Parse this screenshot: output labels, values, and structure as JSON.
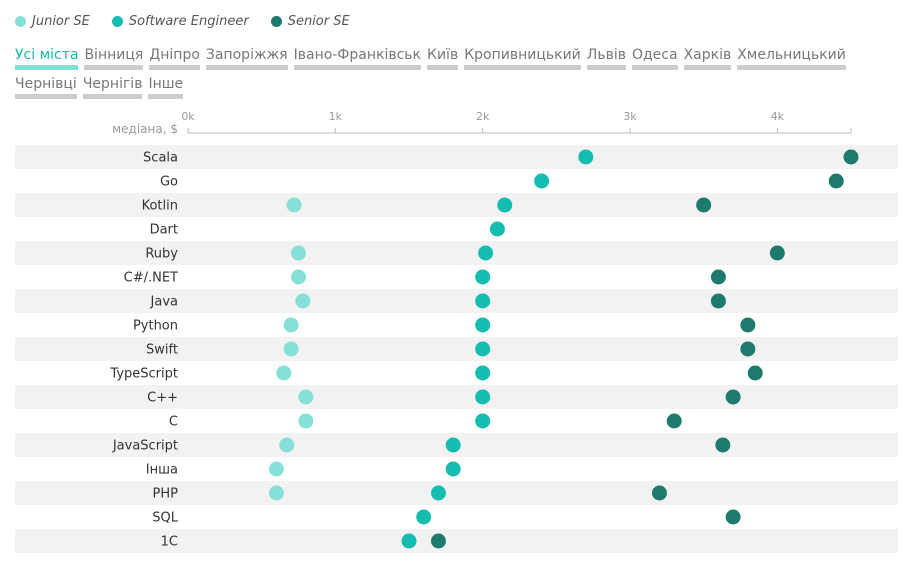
{
  "legend": [
    {
      "name": "Junior SE",
      "color": "#86e0d8"
    },
    {
      "name": "Software Engineer",
      "color": "#14bdb0"
    },
    {
      "name": "Senior SE",
      "color": "#1f7a6e"
    }
  ],
  "cities": [
    "Усі міста",
    "Вінниця",
    "Дніпро",
    "Запоріжжя",
    "Івано-Франківськ",
    "Київ",
    "Кропивницький",
    "Львів",
    "Одеса",
    "Харків",
    "Хмельницький",
    "Чернівці",
    "Чернігів",
    "Інше"
  ],
  "active_city": 0,
  "chart_data": {
    "type": "scatter",
    "xlabel": "медіана, $",
    "xlim": [
      0,
      4500
    ],
    "xticks": [
      0,
      1000,
      2000,
      3000,
      4000
    ],
    "xtick_labels": [
      "0k",
      "1k",
      "2k",
      "3k",
      "4k"
    ],
    "categories": [
      "Scala",
      "Go",
      "Kotlin",
      "Dart",
      "Ruby",
      "C#/.NET",
      "Java",
      "Python",
      "Swift",
      "TypeScript",
      "C++",
      "C",
      "JavaScript",
      "Інша",
      "PHP",
      "SQL",
      "1C"
    ],
    "series": [
      {
        "name": "Junior SE",
        "color": "#86e0d8",
        "values": [
          null,
          null,
          720,
          null,
          750,
          750,
          780,
          700,
          700,
          650,
          800,
          800,
          670,
          600,
          600,
          null,
          null
        ]
      },
      {
        "name": "Software Engineer",
        "color": "#14bdb0",
        "values": [
          2700,
          2400,
          2150,
          2100,
          2020,
          2000,
          2000,
          2000,
          2000,
          2000,
          2000,
          2000,
          1800,
          1800,
          1700,
          1600,
          1500
        ]
      },
      {
        "name": "Senior SE",
        "color": "#1f7a6e",
        "values": [
          4500,
          4400,
          3500,
          null,
          4000,
          3600,
          3600,
          3800,
          3800,
          3850,
          3700,
          3300,
          3630,
          null,
          3200,
          3700,
          1700
        ]
      }
    ]
  }
}
